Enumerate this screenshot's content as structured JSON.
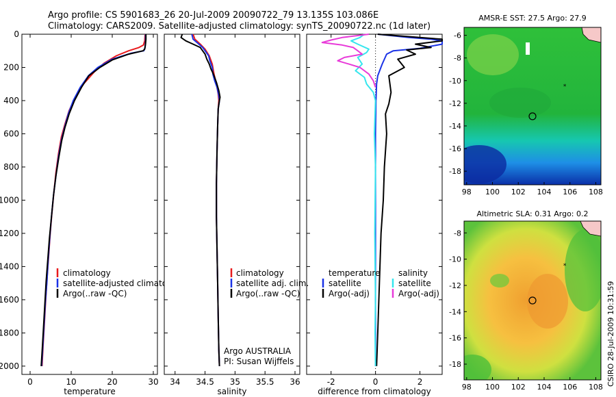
{
  "header": {
    "line1": "Argo profile: CS 5901683_26 20-Jul-2009 20090722_79 13.135S 103.086E",
    "line2": "Climatology: CARS2009. Satellite-adjusted climatology: synTS_20090722.nc (1d later)"
  },
  "credit": "CSIRO 28-Jul-2009 10:31:59",
  "colors": {
    "climatology": "#e8191b",
    "satellite": "#1a32e6",
    "argo": "#000000",
    "salinity_satellite": "#35e6ee",
    "salinity_argo": "#e83ad9"
  },
  "chart_data": [
    {
      "type": "line",
      "id": "temperature",
      "xlabel": "temperature",
      "ylabel": "",
      "xlim": [
        -2,
        31
      ],
      "ylim": [
        2050,
        0
      ],
      "xticks": [
        "0",
        "10",
        "20",
        "30"
      ],
      "yticks": [
        "0",
        "200",
        "400",
        "600",
        "800",
        "1000",
        "1200",
        "1400",
        "1600",
        "1800",
        "2000"
      ],
      "legend": {
        "placement": "lower-right",
        "entries": [
          "climatology",
          "satellite-adjusted climatology",
          "Argo(..raw -QC)"
        ]
      },
      "series": [
        {
          "name": "climatology",
          "color": "#e8191b",
          "points": [
            [
              28,
              0
            ],
            [
              27.9,
              40
            ],
            [
              27.6,
              65
            ],
            [
              26.5,
              80
            ],
            [
              24,
              100
            ],
            [
              21,
              130
            ],
            [
              18,
              175
            ],
            [
              15.5,
              230
            ],
            [
              13,
              300
            ],
            [
              11,
              380
            ],
            [
              9.5,
              460
            ],
            [
              8.5,
              540
            ],
            [
              7.6,
              620
            ],
            [
              6.9,
              720
            ],
            [
              6.3,
              830
            ],
            [
              5.8,
              950
            ],
            [
              5.3,
              1080
            ],
            [
              4.9,
              1200
            ],
            [
              4.5,
              1340
            ],
            [
              4.1,
              1480
            ],
            [
              3.8,
              1600
            ],
            [
              3.5,
              1730
            ],
            [
              3.2,
              1860
            ],
            [
              2.9,
              2000
            ]
          ]
        },
        {
          "name": "satellite-adjusted climatology",
          "color": "#1a32e6",
          "points": [
            [
              28.1,
              0
            ],
            [
              28.1,
              40
            ],
            [
              28,
              80
            ],
            [
              27.7,
              100
            ],
            [
              24.5,
              115
            ],
            [
              20,
              150
            ],
            [
              16.5,
              200
            ],
            [
              14.2,
              250
            ],
            [
              12.2,
              320
            ],
            [
              10.5,
              400
            ],
            [
              9.3,
              480
            ],
            [
              8.4,
              560
            ],
            [
              7.6,
              640
            ],
            [
              6.9,
              740
            ],
            [
              6.3,
              850
            ],
            [
              5.7,
              970
            ],
            [
              5.2,
              1100
            ],
            [
              4.8,
              1220
            ],
            [
              4.4,
              1360
            ],
            [
              4.1,
              1490
            ],
            [
              3.7,
              1620
            ],
            [
              3.4,
              1750
            ],
            [
              3.1,
              1880
            ],
            [
              2.8,
              2000
            ]
          ]
        },
        {
          "name": "Argo(..raw -QC)",
          "color": "#000000",
          "points": [
            [
              28.2,
              0
            ],
            [
              28.2,
              30
            ],
            [
              28.1,
              60
            ],
            [
              27.9,
              90
            ],
            [
              27.5,
              100
            ],
            [
              24,
              120
            ],
            [
              20,
              155
            ],
            [
              17,
              200
            ],
            [
              14.3,
              250
            ],
            [
              12.5,
              320
            ],
            [
              10.8,
              400
            ],
            [
              9.5,
              480
            ],
            [
              8.5,
              560
            ],
            [
              7.7,
              640
            ],
            [
              7,
              740
            ],
            [
              6.3,
              850
            ],
            [
              5.7,
              970
            ],
            [
              5.2,
              1100
            ],
            [
              4.7,
              1230
            ],
            [
              4.3,
              1360
            ],
            [
              3.9,
              1490
            ],
            [
              3.6,
              1620
            ],
            [
              3.3,
              1750
            ],
            [
              3,
              1880
            ],
            [
              2.7,
              2000
            ]
          ]
        }
      ]
    },
    {
      "type": "line",
      "id": "salinity",
      "xlabel": "salinity",
      "ylabel": "",
      "xlim": [
        33.82,
        36.08
      ],
      "ylim": [
        2050,
        0
      ],
      "xticks": [
        "34",
        "34.5",
        "35",
        "35.5",
        "36"
      ],
      "legend": {
        "placement": "lower-right",
        "entries": [
          "climatology",
          "satellite adj. clim.",
          "Argo(..raw -QC)"
        ]
      },
      "annotations": [
        "Argo AUSTRALIA",
        "PI: Susan Wijffels"
      ],
      "series": [
        {
          "name": "climatology",
          "color": "#e8191b",
          "points": [
            [
              34.3,
              0
            ],
            [
              34.33,
              30
            ],
            [
              34.42,
              60
            ],
            [
              34.5,
              90
            ],
            [
              34.57,
              130
            ],
            [
              34.62,
              180
            ],
            [
              34.65,
              240
            ],
            [
              34.69,
              300
            ],
            [
              34.72,
              360
            ],
            [
              34.73,
              400
            ],
            [
              34.72,
              450
            ],
            [
              34.71,
              550
            ],
            [
              34.7,
              700
            ],
            [
              34.69,
              900
            ],
            [
              34.69,
              1100
            ],
            [
              34.7,
              1300
            ],
            [
              34.71,
              1500
            ],
            [
              34.72,
              1700
            ],
            [
              34.73,
              1900
            ],
            [
              34.74,
              2000
            ]
          ]
        },
        {
          "name": "satellite adj. clim.",
          "color": "#1a32e6",
          "points": [
            [
              34.28,
              0
            ],
            [
              34.3,
              30
            ],
            [
              34.38,
              55
            ],
            [
              34.46,
              80
            ],
            [
              34.5,
              100
            ],
            [
              34.56,
              130
            ],
            [
              34.58,
              160
            ],
            [
              34.62,
              200
            ],
            [
              34.63,
              240
            ],
            [
              34.66,
              280
            ],
            [
              34.7,
              320
            ],
            [
              34.73,
              370
            ],
            [
              34.74,
              400
            ],
            [
              34.72,
              450
            ],
            [
              34.71,
              550
            ],
            [
              34.7,
              700
            ],
            [
              34.69,
              900
            ],
            [
              34.69,
              1100
            ],
            [
              34.7,
              1300
            ],
            [
              34.71,
              1500
            ],
            [
              34.72,
              1700
            ],
            [
              34.73,
              1900
            ],
            [
              34.74,
              2000
            ]
          ]
        },
        {
          "name": "Argo(..raw -QC)",
          "color": "#000000",
          "points": [
            [
              34.12,
              0
            ],
            [
              34.1,
              20
            ],
            [
              34.18,
              40
            ],
            [
              34.3,
              60
            ],
            [
              34.42,
              80
            ],
            [
              34.5,
              120
            ],
            [
              34.53,
              150
            ],
            [
              34.57,
              180
            ],
            [
              34.6,
              210
            ],
            [
              34.64,
              240
            ],
            [
              34.69,
              290
            ],
            [
              34.73,
              340
            ],
            [
              34.75,
              380
            ],
            [
              34.74,
              400
            ],
            [
              34.72,
              450
            ],
            [
              34.71,
              550
            ],
            [
              34.7,
              700
            ],
            [
              34.69,
              900
            ],
            [
              34.69,
              1100
            ],
            [
              34.7,
              1300
            ],
            [
              34.71,
              1500
            ],
            [
              34.72,
              1700
            ],
            [
              34.73,
              1900
            ],
            [
              34.74,
              2000
            ]
          ]
        }
      ]
    },
    {
      "type": "line",
      "id": "difference",
      "xlabel": "difference from climatology",
      "ylabel": "",
      "xlim": [
        -3.1,
        3
      ],
      "ylim": [
        2050,
        0
      ],
      "xticks": [
        "-2",
        "0",
        "2"
      ],
      "legend": {
        "placement": "lower-center",
        "entries": [
          "temperature",
          "satellite",
          "Argo(-adj)",
          "salinity",
          "satellite",
          "Argo(-adj)"
        ]
      },
      "series": [
        {
          "name": "temperature satellite",
          "color": "#1a32e6",
          "points": [
            [
              0.1,
              0
            ],
            [
              1.5,
              20
            ],
            [
              2.5,
              30
            ],
            [
              3,
              40
            ],
            [
              3,
              60
            ],
            [
              2,
              85
            ],
            [
              0.8,
              100
            ],
            [
              0.5,
              120
            ],
            [
              0.3,
              180
            ],
            [
              0.1,
              250
            ],
            [
              0.05,
              300
            ],
            [
              0.02,
              400
            ],
            [
              0,
              600
            ],
            [
              0,
              800
            ],
            [
              0,
              1200
            ],
            [
              0,
              1600
            ],
            [
              0,
              2000
            ]
          ]
        },
        {
          "name": "temperature Argo(-adj)",
          "color": "#000000",
          "points": [
            [
              0.1,
              0
            ],
            [
              2,
              20
            ],
            [
              3,
              30
            ],
            [
              3,
              40
            ],
            [
              1.8,
              60
            ],
            [
              2.5,
              80
            ],
            [
              1.4,
              95
            ],
            [
              1.8,
              120
            ],
            [
              1,
              150
            ],
            [
              1.3,
              200
            ],
            [
              0.6,
              250
            ],
            [
              0.7,
              350
            ],
            [
              0.6,
              420
            ],
            [
              0.45,
              480
            ],
            [
              0.5,
              600
            ],
            [
              0.4,
              800
            ],
            [
              0.35,
              1000
            ],
            [
              0.25,
              1200
            ],
            [
              0.2,
              1400
            ],
            [
              0.15,
              1600
            ],
            [
              0.1,
              1800
            ],
            [
              0.05,
              2000
            ]
          ]
        },
        {
          "name": "salinity satellite",
          "color": "#35e6ee",
          "points": [
            [
              -0.5,
              0
            ],
            [
              -0.7,
              20
            ],
            [
              -1.1,
              40
            ],
            [
              -0.8,
              60
            ],
            [
              -0.3,
              90
            ],
            [
              -0.4,
              110
            ],
            [
              -0.8,
              140
            ],
            [
              -0.6,
              180
            ],
            [
              -0.9,
              220
            ],
            [
              -0.5,
              260
            ],
            [
              -0.4,
              300
            ],
            [
              -0.1,
              350
            ],
            [
              0,
              400
            ],
            [
              -0.05,
              600
            ],
            [
              0,
              800
            ],
            [
              -0.03,
              1200
            ],
            [
              0,
              1600
            ],
            [
              -0.02,
              1800
            ],
            [
              0,
              2000
            ]
          ]
        },
        {
          "name": "salinity Argo(-adj)",
          "color": "#e83ad9",
          "points": [
            [
              -0.3,
              0
            ],
            [
              -1.5,
              20
            ],
            [
              -2,
              35
            ],
            [
              -2.4,
              50
            ],
            [
              -1.5,
              65
            ],
            [
              -1,
              80
            ],
            [
              -0.8,
              100
            ],
            [
              -0.6,
              120
            ],
            [
              -1.4,
              140
            ],
            [
              -1.7,
              160
            ],
            [
              -1.2,
              180
            ],
            [
              -0.7,
              200
            ],
            [
              -0.3,
              240
            ],
            [
              -0.1,
              280
            ],
            [
              0,
              320
            ]
          ]
        }
      ]
    },
    {
      "type": "heatmap",
      "id": "sst-map",
      "title": "AMSR-E SST: 27.5 Argo: 27.9",
      "xticks": [
        "98",
        "100",
        "102",
        "104",
        "106",
        "108"
      ],
      "yticks": [
        "-6",
        "-8",
        "-10",
        "-12",
        "-14",
        "-16",
        "-18"
      ],
      "xlim": [
        97.8,
        108.4
      ],
      "ylim": [
        -19.2,
        -5.3
      ],
      "markers": [
        {
          "label": "profile",
          "x": 103.1,
          "y": -13.15
        },
        {
          "label": "other float",
          "x": 105.6,
          "y": -10.5
        }
      ]
    },
    {
      "type": "heatmap",
      "id": "sla-map",
      "title": "Altimetric SLA: 0.31 Argo: 0.2",
      "xticks": [
        "98",
        "100",
        "102",
        "104",
        "106",
        "108"
      ],
      "yticks": [
        "-8",
        "-10",
        "-12",
        "-14",
        "-16",
        "-18"
      ],
      "xlim": [
        97.8,
        108.4
      ],
      "ylim": [
        -19.2,
        -7.1
      ],
      "markers": [
        {
          "label": "profile",
          "x": 103.1,
          "y": -13.15
        },
        {
          "label": "other float",
          "x": 105.6,
          "y": -10.5
        }
      ]
    }
  ]
}
